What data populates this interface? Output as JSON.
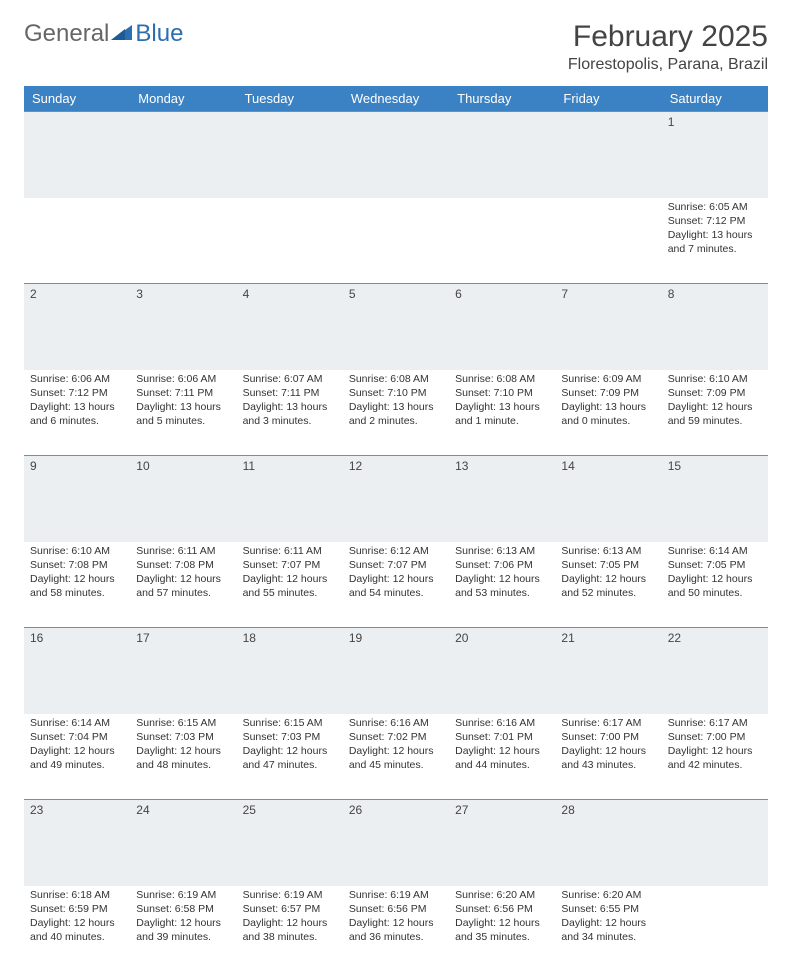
{
  "logo": {
    "general": "General",
    "blue": "Blue"
  },
  "title": "February 2025",
  "location": "Florestopolis, Parana, Brazil",
  "colors": {
    "header_bg": "#3b82c4",
    "header_text": "#ffffff",
    "daynum_bg": "#eceff1",
    "border": "#888888",
    "logo_blue": "#2b6fb0",
    "logo_gray": "#666666"
  },
  "weekdays": [
    "Sunday",
    "Monday",
    "Tuesday",
    "Wednesday",
    "Thursday",
    "Friday",
    "Saturday"
  ],
  "weeks": [
    [
      null,
      null,
      null,
      null,
      null,
      null,
      {
        "n": "1",
        "sr": "Sunrise: 6:05 AM",
        "ss": "Sunset: 7:12 PM",
        "dl1": "Daylight: 13 hours",
        "dl2": "and 7 minutes."
      }
    ],
    [
      {
        "n": "2",
        "sr": "Sunrise: 6:06 AM",
        "ss": "Sunset: 7:12 PM",
        "dl1": "Daylight: 13 hours",
        "dl2": "and 6 minutes."
      },
      {
        "n": "3",
        "sr": "Sunrise: 6:06 AM",
        "ss": "Sunset: 7:11 PM",
        "dl1": "Daylight: 13 hours",
        "dl2": "and 5 minutes."
      },
      {
        "n": "4",
        "sr": "Sunrise: 6:07 AM",
        "ss": "Sunset: 7:11 PM",
        "dl1": "Daylight: 13 hours",
        "dl2": "and 3 minutes."
      },
      {
        "n": "5",
        "sr": "Sunrise: 6:08 AM",
        "ss": "Sunset: 7:10 PM",
        "dl1": "Daylight: 13 hours",
        "dl2": "and 2 minutes."
      },
      {
        "n": "6",
        "sr": "Sunrise: 6:08 AM",
        "ss": "Sunset: 7:10 PM",
        "dl1": "Daylight: 13 hours",
        "dl2": "and 1 minute."
      },
      {
        "n": "7",
        "sr": "Sunrise: 6:09 AM",
        "ss": "Sunset: 7:09 PM",
        "dl1": "Daylight: 13 hours",
        "dl2": "and 0 minutes."
      },
      {
        "n": "8",
        "sr": "Sunrise: 6:10 AM",
        "ss": "Sunset: 7:09 PM",
        "dl1": "Daylight: 12 hours",
        "dl2": "and 59 minutes."
      }
    ],
    [
      {
        "n": "9",
        "sr": "Sunrise: 6:10 AM",
        "ss": "Sunset: 7:08 PM",
        "dl1": "Daylight: 12 hours",
        "dl2": "and 58 minutes."
      },
      {
        "n": "10",
        "sr": "Sunrise: 6:11 AM",
        "ss": "Sunset: 7:08 PM",
        "dl1": "Daylight: 12 hours",
        "dl2": "and 57 minutes."
      },
      {
        "n": "11",
        "sr": "Sunrise: 6:11 AM",
        "ss": "Sunset: 7:07 PM",
        "dl1": "Daylight: 12 hours",
        "dl2": "and 55 minutes."
      },
      {
        "n": "12",
        "sr": "Sunrise: 6:12 AM",
        "ss": "Sunset: 7:07 PM",
        "dl1": "Daylight: 12 hours",
        "dl2": "and 54 minutes."
      },
      {
        "n": "13",
        "sr": "Sunrise: 6:13 AM",
        "ss": "Sunset: 7:06 PM",
        "dl1": "Daylight: 12 hours",
        "dl2": "and 53 minutes."
      },
      {
        "n": "14",
        "sr": "Sunrise: 6:13 AM",
        "ss": "Sunset: 7:05 PM",
        "dl1": "Daylight: 12 hours",
        "dl2": "and 52 minutes."
      },
      {
        "n": "15",
        "sr": "Sunrise: 6:14 AM",
        "ss": "Sunset: 7:05 PM",
        "dl1": "Daylight: 12 hours",
        "dl2": "and 50 minutes."
      }
    ],
    [
      {
        "n": "16",
        "sr": "Sunrise: 6:14 AM",
        "ss": "Sunset: 7:04 PM",
        "dl1": "Daylight: 12 hours",
        "dl2": "and 49 minutes."
      },
      {
        "n": "17",
        "sr": "Sunrise: 6:15 AM",
        "ss": "Sunset: 7:03 PM",
        "dl1": "Daylight: 12 hours",
        "dl2": "and 48 minutes."
      },
      {
        "n": "18",
        "sr": "Sunrise: 6:15 AM",
        "ss": "Sunset: 7:03 PM",
        "dl1": "Daylight: 12 hours",
        "dl2": "and 47 minutes."
      },
      {
        "n": "19",
        "sr": "Sunrise: 6:16 AM",
        "ss": "Sunset: 7:02 PM",
        "dl1": "Daylight: 12 hours",
        "dl2": "and 45 minutes."
      },
      {
        "n": "20",
        "sr": "Sunrise: 6:16 AM",
        "ss": "Sunset: 7:01 PM",
        "dl1": "Daylight: 12 hours",
        "dl2": "and 44 minutes."
      },
      {
        "n": "21",
        "sr": "Sunrise: 6:17 AM",
        "ss": "Sunset: 7:00 PM",
        "dl1": "Daylight: 12 hours",
        "dl2": "and 43 minutes."
      },
      {
        "n": "22",
        "sr": "Sunrise: 6:17 AM",
        "ss": "Sunset: 7:00 PM",
        "dl1": "Daylight: 12 hours",
        "dl2": "and 42 minutes."
      }
    ],
    [
      {
        "n": "23",
        "sr": "Sunrise: 6:18 AM",
        "ss": "Sunset: 6:59 PM",
        "dl1": "Daylight: 12 hours",
        "dl2": "and 40 minutes."
      },
      {
        "n": "24",
        "sr": "Sunrise: 6:19 AM",
        "ss": "Sunset: 6:58 PM",
        "dl1": "Daylight: 12 hours",
        "dl2": "and 39 minutes."
      },
      {
        "n": "25",
        "sr": "Sunrise: 6:19 AM",
        "ss": "Sunset: 6:57 PM",
        "dl1": "Daylight: 12 hours",
        "dl2": "and 38 minutes."
      },
      {
        "n": "26",
        "sr": "Sunrise: 6:19 AM",
        "ss": "Sunset: 6:56 PM",
        "dl1": "Daylight: 12 hours",
        "dl2": "and 36 minutes."
      },
      {
        "n": "27",
        "sr": "Sunrise: 6:20 AM",
        "ss": "Sunset: 6:56 PM",
        "dl1": "Daylight: 12 hours",
        "dl2": "and 35 minutes."
      },
      {
        "n": "28",
        "sr": "Sunrise: 6:20 AM",
        "ss": "Sunset: 6:55 PM",
        "dl1": "Daylight: 12 hours",
        "dl2": "and 34 minutes."
      },
      null
    ]
  ]
}
